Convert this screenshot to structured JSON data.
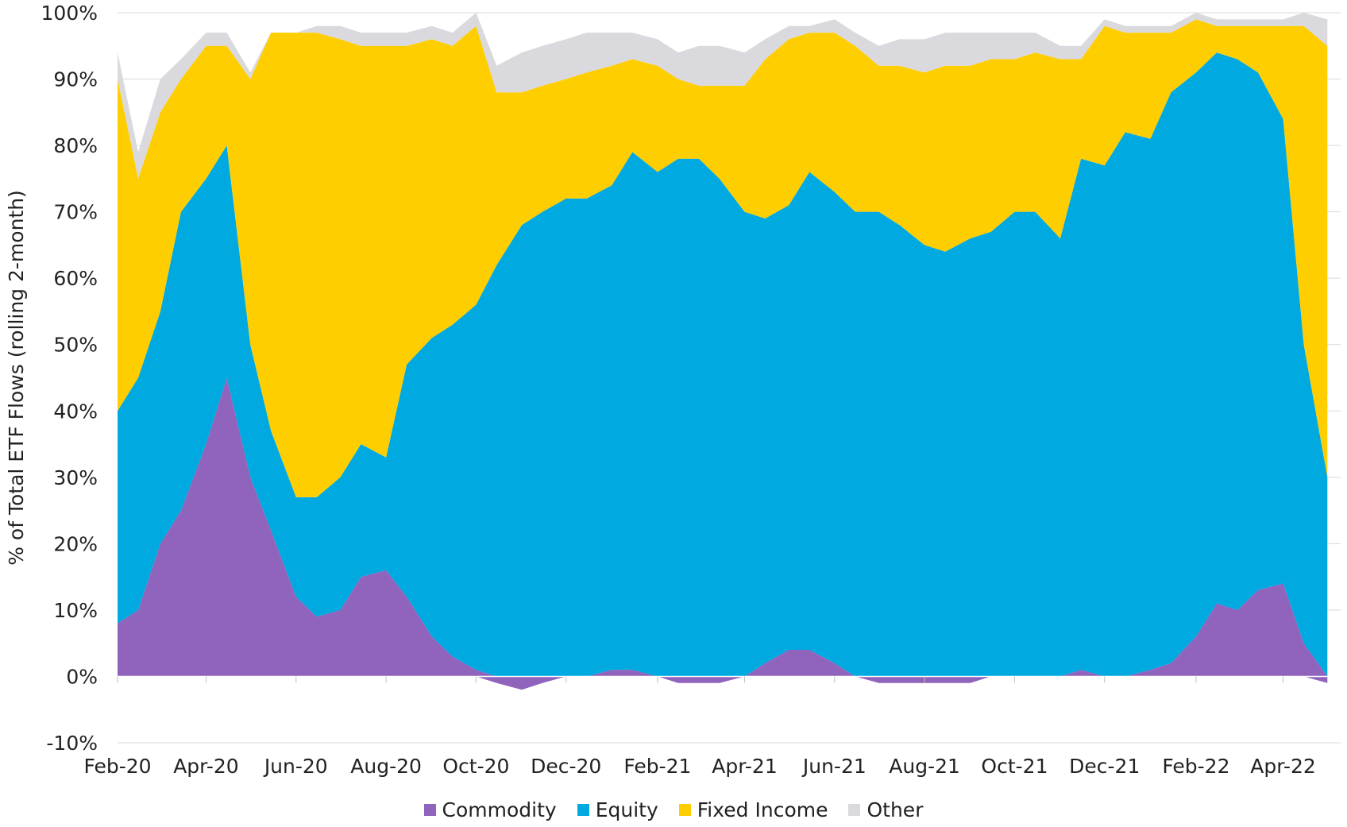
{
  "chart_data": {
    "type": "area",
    "stacked": true,
    "ylabel": "% of Total ETF  Flows  (rolling 2-month)",
    "ylim": [
      -10,
      100
    ],
    "y_ticks": [
      "-10%",
      "0%",
      "10%",
      "20%",
      "30%",
      "40%",
      "50%",
      "60%",
      "70%",
      "80%",
      "90%",
      "100%"
    ],
    "x_ticks": [
      "Feb-20",
      "Apr-20",
      "Jun-20",
      "Aug-20",
      "Oct-20",
      "Dec-20",
      "Feb-21",
      "Apr-21",
      "Jun-21",
      "Aug-21",
      "Oct-21",
      "Dec-21",
      "Feb-22",
      "Apr-22"
    ],
    "grid": "horizontal",
    "legend_position": "bottom",
    "x": [
      "2020-02-01",
      "2020-02-15",
      "2020-03-01",
      "2020-03-15",
      "2020-04-01",
      "2020-04-15",
      "2020-05-01",
      "2020-05-15",
      "2020-06-01",
      "2020-06-15",
      "2020-07-01",
      "2020-07-15",
      "2020-08-01",
      "2020-08-15",
      "2020-09-01",
      "2020-09-15",
      "2020-10-01",
      "2020-10-15",
      "2020-11-01",
      "2020-11-15",
      "2020-12-01",
      "2020-12-15",
      "2021-01-01",
      "2021-01-15",
      "2021-02-01",
      "2021-02-15",
      "2021-03-01",
      "2021-03-15",
      "2021-04-01",
      "2021-04-15",
      "2021-05-01",
      "2021-05-15",
      "2021-06-01",
      "2021-06-15",
      "2021-07-01",
      "2021-07-15",
      "2021-08-01",
      "2021-08-15",
      "2021-09-01",
      "2021-09-15",
      "2021-10-01",
      "2021-10-15",
      "2021-11-01",
      "2021-11-15",
      "2021-12-01",
      "2021-12-15",
      "2022-01-01",
      "2022-01-15",
      "2022-02-01",
      "2022-02-15",
      "2022-03-01",
      "2022-03-15",
      "2022-04-01",
      "2022-04-15",
      "2022-05-01"
    ],
    "series": [
      {
        "name": "Commodity",
        "color": "#9063BD",
        "values": [
          8,
          10,
          20,
          25,
          35,
          45,
          30,
          22,
          12,
          9,
          10,
          15,
          16,
          12,
          6,
          3,
          1,
          -1,
          -2,
          -1,
          0,
          0,
          1,
          1,
          0,
          -1,
          -1,
          -1,
          0,
          2,
          4,
          4,
          2,
          0,
          -1,
          -1,
          -1,
          -1,
          -1,
          0,
          0,
          0,
          0,
          1,
          0,
          0,
          1,
          2,
          6,
          11,
          10,
          13,
          14,
          5,
          -1
        ]
      },
      {
        "name": "Equity",
        "color": "#00A9E0",
        "values": [
          32,
          35,
          35,
          45,
          40,
          35,
          20,
          15,
          15,
          18,
          20,
          20,
          17,
          35,
          45,
          50,
          55,
          62,
          68,
          70,
          72,
          72,
          73,
          78,
          76,
          78,
          78,
          75,
          70,
          67,
          67,
          72,
          71,
          70,
          70,
          68,
          65,
          64,
          66,
          67,
          70,
          70,
          66,
          77,
          77,
          82,
          80,
          86,
          85,
          83,
          83,
          78,
          70,
          45,
          30
        ]
      },
      {
        "name": "Fixed Income",
        "color": "#FFCE00",
        "values": [
          50,
          30,
          30,
          20,
          20,
          15,
          40,
          60,
          70,
          70,
          66,
          60,
          62,
          48,
          45,
          42,
          42,
          26,
          20,
          19,
          18,
          19,
          18,
          14,
          16,
          12,
          11,
          14,
          19,
          24,
          25,
          21,
          24,
          25,
          22,
          24,
          26,
          28,
          26,
          26,
          23,
          24,
          27,
          15,
          21,
          15,
          16,
          9,
          8,
          4,
          5,
          7,
          14,
          48,
          65
        ]
      },
      {
        "name": "Other",
        "color": "#D9D9DE",
        "values": [
          4,
          4,
          5,
          3,
          2,
          2,
          1,
          0,
          0,
          1,
          2,
          2,
          2,
          2,
          2,
          2,
          2,
          4,
          6,
          6,
          6,
          6,
          5,
          4,
          4,
          4,
          6,
          6,
          5,
          3,
          2,
          1,
          2,
          2,
          3,
          4,
          5,
          5,
          5,
          4,
          4,
          3,
          2,
          2,
          1,
          1,
          1,
          1,
          1,
          1,
          1,
          1,
          1,
          2,
          4
        ]
      }
    ]
  }
}
